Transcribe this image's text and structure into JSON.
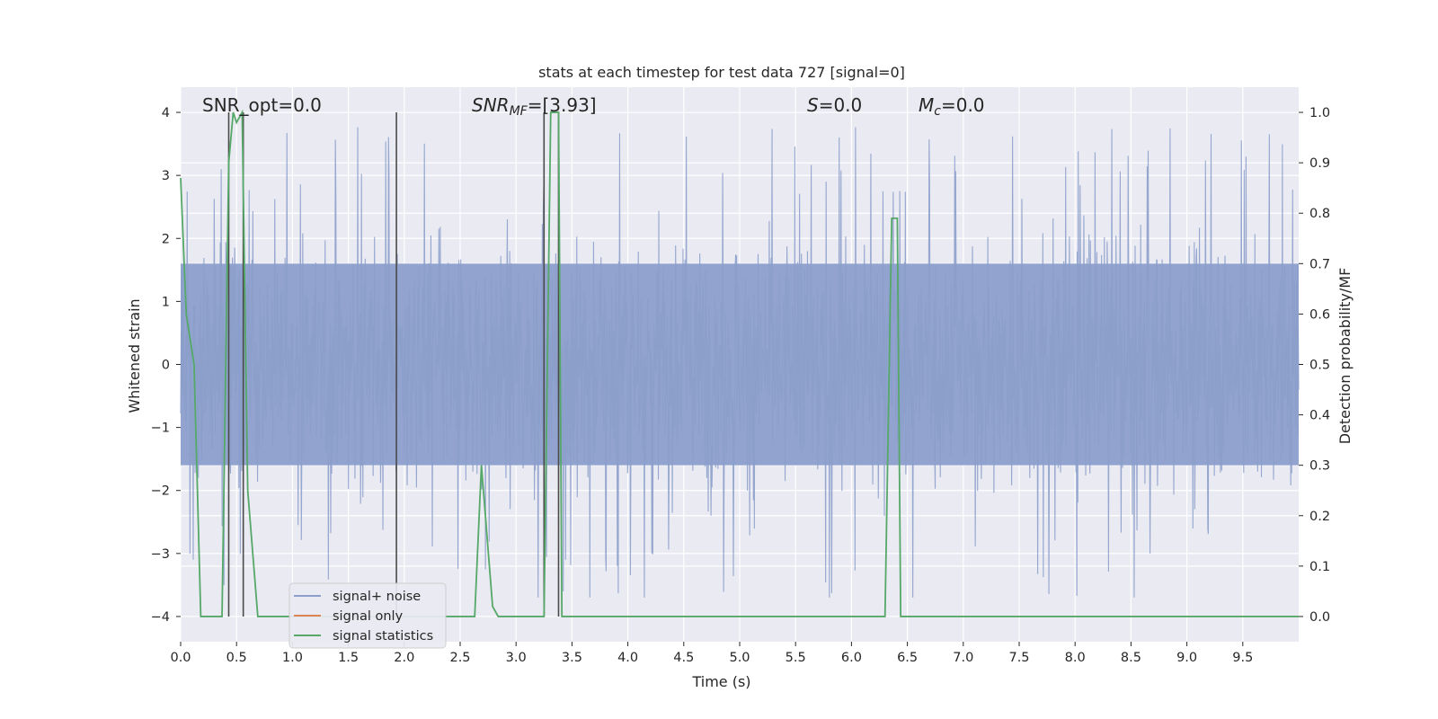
{
  "chart_data": {
    "type": "line",
    "title": "stats at each timestep for test data 727 [signal=0]",
    "xlabel": "Time (s)",
    "ylabel_left": "Whitened strain",
    "ylabel_right": "Detection probability/MF",
    "xlim": [
      0.0,
      10.0
    ],
    "ylim_left": [
      -4.4,
      4.4
    ],
    "ylim_right": [
      -0.05,
      1.05
    ],
    "x_ticks": [
      "0.0",
      "0.5",
      "1.0",
      "1.5",
      "2.0",
      "2.5",
      "3.0",
      "3.5",
      "4.0",
      "4.5",
      "5.0",
      "5.5",
      "6.0",
      "6.5",
      "7.0",
      "7.5",
      "8.0",
      "8.5",
      "9.0",
      "9.5"
    ],
    "y_left_ticks": [
      "−4",
      "−3",
      "−2",
      "−1",
      "0",
      "1",
      "2",
      "3",
      "4"
    ],
    "y_right_ticks": [
      "0.0",
      "0.1",
      "0.2",
      "0.3",
      "0.4",
      "0.5",
      "0.6",
      "0.7",
      "0.8",
      "0.9",
      "1.0"
    ],
    "grid": true,
    "legend_position": "lower-left",
    "annotations": {
      "snr_opt": "SNR_opt=0.0",
      "snr_mf_prefix": "SNR",
      "snr_mf_sub": "MF",
      "snr_mf_value": "=[3.93]",
      "s_label": "S",
      "s_value": "=0.0",
      "mc_label": "M",
      "mc_sub": "c",
      "mc_value": "=0.0"
    },
    "series": [
      {
        "name": "signal+ noise",
        "color": "#8c9fcb",
        "kind": "noise",
        "x_range": [
          0.0,
          10.0
        ],
        "envelope_pos": [
          2.2,
          4.03
        ],
        "envelope_neg": [
          -2.0,
          -3.7
        ]
      },
      {
        "name": "signal only",
        "color": "#dd8452",
        "kind": "flat",
        "values": []
      },
      {
        "name": "signal statistics",
        "color": "#55a868",
        "kind": "line",
        "x": [
          0.0,
          0.05,
          0.12,
          0.18,
          0.37,
          0.43,
          0.47,
          0.5,
          0.55,
          0.6,
          0.69,
          2.0,
          2.02,
          2.63,
          2.69,
          2.79,
          2.84,
          3.25,
          3.31,
          3.38,
          3.41,
          3.44,
          6.3,
          6.36,
          6.41,
          6.44,
          10.0
        ],
        "y": [
          0.87,
          0.6,
          0.5,
          0.0,
          0.0,
          0.9,
          1.0,
          0.98,
          1.0,
          0.25,
          0.0,
          0.0,
          0.0,
          0.0,
          0.3,
          0.02,
          0.0,
          0.0,
          1.0,
          1.0,
          0.0,
          0.0,
          0.0,
          0.79,
          0.79,
          0.0,
          0.0
        ]
      }
    ],
    "markers": {
      "color": "#4a4a4a",
      "x": [
        0.43,
        0.56,
        1.93,
        3.25,
        3.38
      ],
      "y_top": [
        1.0,
        1.0,
        1.0,
        1.0,
        1.0
      ],
      "y_bottom": [
        0.0,
        0.0,
        0.0,
        0.0,
        0.0
      ]
    },
    "colors": {
      "plot_background": "#eaeaf2",
      "grid": "#ffffff",
      "text": "#262626"
    }
  }
}
